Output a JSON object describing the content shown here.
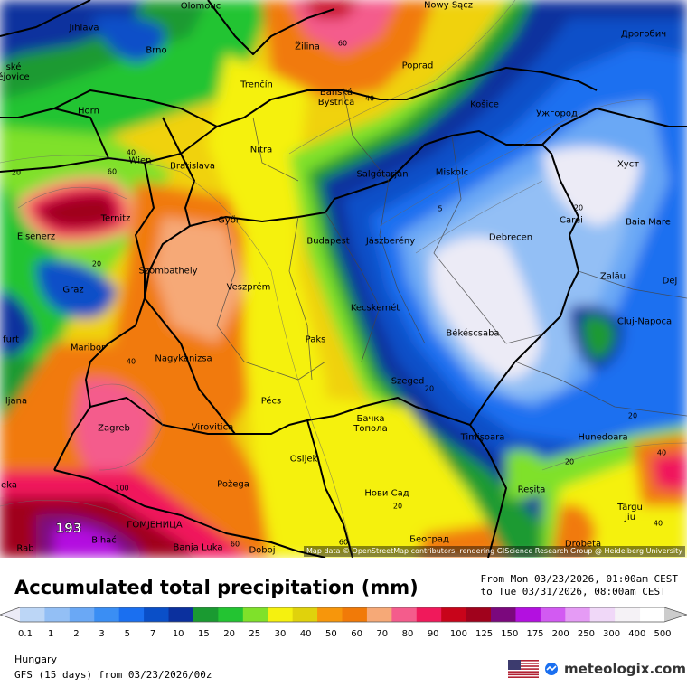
{
  "map": {
    "attribution": "Map data © OpenStreetMap contributors, rendering GIScience Research Group @ Heidelberg University",
    "max_value": "193",
    "cities": [
      {
        "name": "Olomouc"
      },
      {
        "name": "Nowy Sącz"
      },
      {
        "name": "Jihlava"
      },
      {
        "name": "Brno"
      },
      {
        "name": "Дрогобич"
      },
      {
        "name": "ské\nějovice"
      },
      {
        "name": "Žilina"
      },
      {
        "name": "Poprad"
      },
      {
        "name": "Trenčín"
      },
      {
        "name": "Banská\nBystrica"
      },
      {
        "name": "Horn"
      },
      {
        "name": "Košice"
      },
      {
        "name": "Ужгород"
      },
      {
        "name": "Nitra"
      },
      {
        "name": "Wien"
      },
      {
        "name": "Bratislava"
      },
      {
        "name": "Salgótarján"
      },
      {
        "name": "Miskolc"
      },
      {
        "name": "Хуст"
      },
      {
        "name": "Ternitz"
      },
      {
        "name": "Győr"
      },
      {
        "name": "Carei"
      },
      {
        "name": "Baia Mare"
      },
      {
        "name": "Eisenerz"
      },
      {
        "name": "Budapest"
      },
      {
        "name": "Jászberény"
      },
      {
        "name": "Debrecen"
      },
      {
        "name": "Szombathely"
      },
      {
        "name": "Zalău"
      },
      {
        "name": "Graz"
      },
      {
        "name": "Veszprém"
      },
      {
        "name": "Dej"
      },
      {
        "name": "Kecskemét"
      },
      {
        "name": "Cluj-Napoca"
      },
      {
        "name": "furt"
      },
      {
        "name": "Paks"
      },
      {
        "name": "Békéscsaba"
      },
      {
        "name": "Maribor"
      },
      {
        "name": "Nagykanizsa"
      },
      {
        "name": "Szeged"
      },
      {
        "name": "ljana"
      },
      {
        "name": "Pécs"
      },
      {
        "name": "Бачка\nТопола"
      },
      {
        "name": "Zagreb"
      },
      {
        "name": "Virovitica"
      },
      {
        "name": "Timișoara"
      },
      {
        "name": "Hunedoara"
      },
      {
        "name": "Osijek"
      },
      {
        "name": "eka"
      },
      {
        "name": "Požega"
      },
      {
        "name": "Reșița"
      },
      {
        "name": "Нови Сад"
      },
      {
        "name": "Târgu\nJiu"
      },
      {
        "name": "ГОМЈЕНИЦА"
      },
      {
        "name": "Bihać"
      },
      {
        "name": "Banja Luka"
      },
      {
        "name": "Doboj"
      },
      {
        "name": "Београд"
      },
      {
        "name": "Drobeta"
      },
      {
        "name": "Rab"
      }
    ],
    "contour_labels": [
      "60",
      "40",
      "40",
      "60",
      "20",
      "20",
      "5",
      "20",
      "40",
      "20",
      "40",
      "40",
      "60",
      "100",
      "60",
      "20",
      "20",
      "20"
    ]
  },
  "legend": {
    "title": "Accumulated total precipitation (mm)",
    "period_line1": "From Mon 03/23/2026, 01:00am CEST",
    "period_line2": "to Tue 03/31/2026, 08:00am CEST",
    "ticks": [
      "0.1",
      "1",
      "2",
      "3",
      "5",
      "7",
      "10",
      "15",
      "20",
      "25",
      "30",
      "40",
      "50",
      "60",
      "70",
      "80",
      "90",
      "100",
      "125",
      "150",
      "175",
      "200",
      "250",
      "300",
      "400",
      "500"
    ],
    "colors": [
      "#ecebf6",
      "#bcd6f6",
      "#93bff5",
      "#6aa8f5",
      "#3a8ef4",
      "#1a6ff0",
      "#0a4fc8",
      "#0b309e",
      "#1a9a31",
      "#23c432",
      "#7fe12a",
      "#f5f10f",
      "#e0d20c",
      "#f7960b",
      "#f17a08",
      "#f6a977",
      "#f45c8c",
      "#f0195b",
      "#c8041a",
      "#a0021c",
      "#7b087d",
      "#b310e0",
      "#d25af2",
      "#e59bf5",
      "#f0d8f8",
      "#f5f2f6",
      "#cccccc"
    ],
    "region": "Hungary",
    "model": "GFS (15 days) from 03/23/2026/00z",
    "brand": "meteologix.com"
  }
}
